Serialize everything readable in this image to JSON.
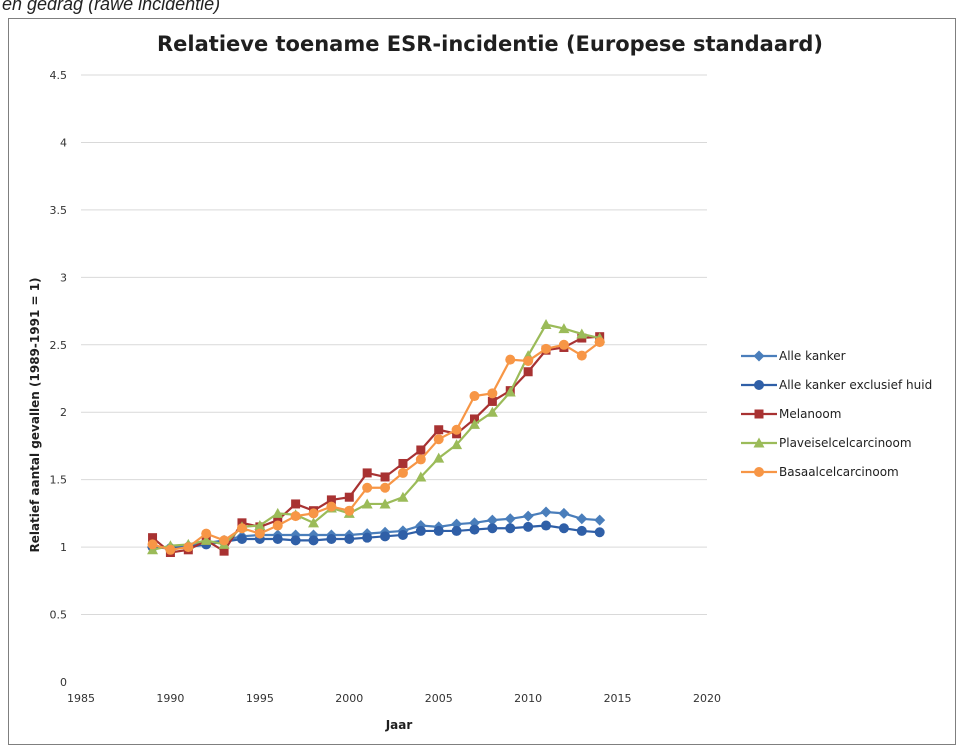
{
  "caption": "en gedrag (rawe incidentie)",
  "chart_data": {
    "type": "line",
    "title": "Relatieve toename ESR-incidentie (Europese standaard)",
    "xlabel": "Jaar",
    "ylabel": "Relatief aantal gevallen (1989-1991 = 1)",
    "xlim": [
      1985,
      2020
    ],
    "ylim": [
      0,
      4.5
    ],
    "xticks": [
      1985,
      1990,
      1995,
      2000,
      2005,
      2010,
      2015,
      2020
    ],
    "yticks": [
      0,
      0.5,
      1,
      1.5,
      2,
      2.5,
      3,
      3.5,
      4,
      4.5
    ],
    "ytick_labels": [
      "0",
      "0.5",
      "1",
      "1.5",
      "2",
      "2.5",
      "3",
      "3.5",
      "4",
      "4.5"
    ],
    "grid": "horizontal",
    "legend_position": "right",
    "x": [
      1989,
      1990,
      1991,
      1992,
      1993,
      1994,
      1995,
      1996,
      1997,
      1998,
      1999,
      2000,
      2001,
      2002,
      2003,
      2004,
      2005,
      2006,
      2007,
      2008,
      2009,
      2010,
      2011,
      2012,
      2013,
      2014
    ],
    "series": [
      {
        "name": "Alle kanker",
        "color": "#4a7ebb",
        "marker": "diamond",
        "values": [
          1.0,
          1.0,
          1.01,
          1.03,
          1.05,
          1.08,
          1.09,
          1.09,
          1.09,
          1.09,
          1.09,
          1.09,
          1.1,
          1.11,
          1.12,
          1.16,
          1.15,
          1.17,
          1.18,
          1.2,
          1.21,
          1.23,
          1.26,
          1.25,
          1.21,
          1.2
        ]
      },
      {
        "name": "Alle kanker exclusief huid",
        "color": "#2f5fa7",
        "marker": "circle",
        "values": [
          1.0,
          0.99,
          1.0,
          1.02,
          1.04,
          1.06,
          1.06,
          1.06,
          1.05,
          1.05,
          1.06,
          1.06,
          1.07,
          1.08,
          1.09,
          1.12,
          1.12,
          1.12,
          1.13,
          1.14,
          1.14,
          1.15,
          1.16,
          1.14,
          1.12,
          1.11
        ]
      },
      {
        "name": "Melanoom",
        "color": "#a83232",
        "marker": "square",
        "values": [
          1.07,
          0.96,
          0.98,
          1.05,
          0.97,
          1.18,
          1.15,
          1.2,
          1.32,
          1.27,
          1.35,
          1.37,
          1.55,
          1.52,
          1.62,
          1.72,
          1.87,
          1.84,
          1.95,
          2.08,
          2.16,
          2.3,
          2.46,
          2.48,
          2.55,
          2.56
        ]
      },
      {
        "name": "Plaveiselcelcarcinoom",
        "color": "#9bbb59",
        "marker": "triangle",
        "values": [
          0.98,
          1.01,
          1.02,
          1.05,
          1.02,
          1.15,
          1.16,
          1.25,
          1.24,
          1.18,
          1.29,
          1.25,
          1.32,
          1.32,
          1.37,
          1.52,
          1.66,
          1.76,
          1.91,
          2.0,
          2.15,
          2.42,
          2.65,
          2.62,
          2.58,
          2.55
        ]
      },
      {
        "name": "Basaalcelcarcinoom",
        "color": "#f79646",
        "marker": "circle",
        "values": [
          1.02,
          0.98,
          1.0,
          1.1,
          1.05,
          1.14,
          1.1,
          1.16,
          1.23,
          1.25,
          1.3,
          1.27,
          1.44,
          1.44,
          1.55,
          1.65,
          1.8,
          1.87,
          2.12,
          2.14,
          2.39,
          2.38,
          2.47,
          2.5,
          2.42,
          2.52
        ]
      }
    ]
  }
}
